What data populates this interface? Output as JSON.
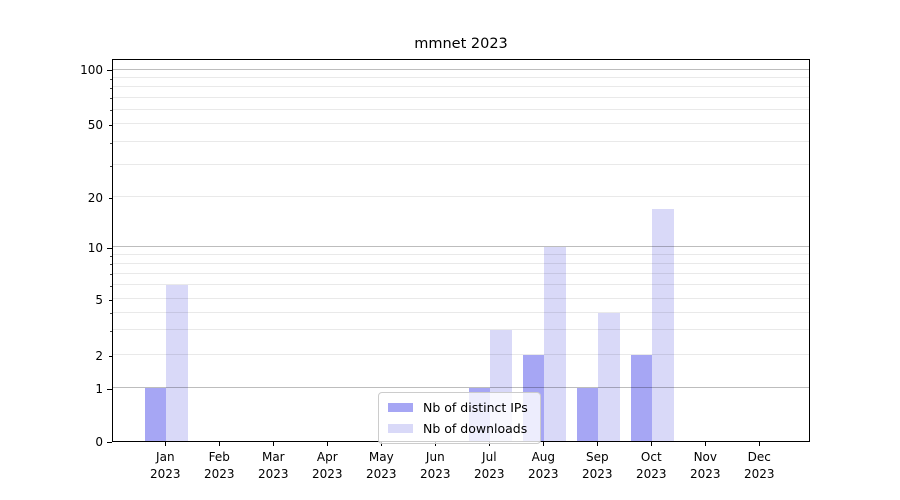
{
  "chart_data": {
    "type": "bar",
    "title": "mmnet 2023",
    "categories": [
      "Jan 2023",
      "Feb 2023",
      "Mar 2023",
      "Apr 2023",
      "May 2023",
      "Jun 2023",
      "Jul 2023",
      "Aug 2023",
      "Sep 2023",
      "Oct 2023",
      "Nov 2023",
      "Dec 2023"
    ],
    "series": [
      {
        "name": "Nb of distinct IPs",
        "color": "#a6a6f4",
        "values": [
          1,
          0,
          0,
          0,
          0,
          0,
          1,
          2,
          1,
          2,
          0,
          0
        ]
      },
      {
        "name": "Nb of downloads",
        "color": "#d9d9f8",
        "values": [
          6,
          0,
          0,
          0,
          0,
          0,
          3,
          10,
          4,
          17,
          0,
          0
        ]
      }
    ],
    "yscale": "symlog",
    "yticks": [
      0,
      1,
      2,
      5,
      10,
      20,
      50,
      100
    ],
    "ylim": [
      0,
      115
    ],
    "grid": "horizontal",
    "legend_position": "lower-center",
    "xlabel": "",
    "ylabel": ""
  },
  "colors": {
    "major_gridline": "#c2c2c2",
    "minor_gridline": "#ebebeb",
    "spine": "#000000",
    "background": "#ffffff"
  }
}
